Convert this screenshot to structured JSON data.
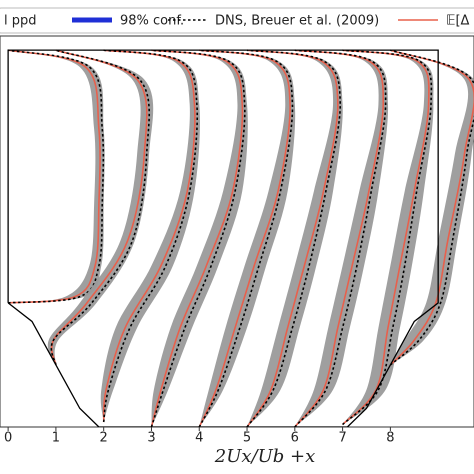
{
  "chart_data": {
    "type": "line",
    "xlabel": "2Ux/Ub +x",
    "xlim": [
      -0.17,
      9.75
    ],
    "ylim": [
      0,
      3.15
    ],
    "xticks": [
      0,
      1,
      2,
      3,
      4,
      5,
      6,
      7,
      8
    ],
    "legend": [
      {
        "name": "l ppd",
        "color": "#9a9a9a"
      },
      {
        "name": "98% conf.",
        "color": "#1f2fd6"
      },
      {
        "name": "DNS, Breuer et al. (2009)",
        "color": "#000000"
      },
      {
        "name": "𝔼[Δ",
        "color": "#e8604c"
      }
    ],
    "geometry": {
      "color": "#000000",
      "x": [
        0,
        0.5,
        1,
        1.5,
        1.9,
        7.1,
        7.5,
        8,
        8.5,
        9,
        9,
        0,
        0
      ],
      "y": [
        1,
        0.85,
        0.5,
        0.15,
        0,
        0,
        0.15,
        0.5,
        0.85,
        1,
        3.036,
        3.036,
        1
      ]
    },
    "profiles": [
      {
        "y": [
          1,
          1.05,
          1.3,
          1.8,
          2.4,
          2.9,
          3.036
        ],
        "dns": [
          0,
          1.5,
          1.9,
          1.97,
          1.97,
          1.7,
          0
        ],
        "mean": [
          0,
          1.4,
          1.82,
          1.9,
          1.9,
          1.62,
          0
        ],
        "lo": [
          0,
          1.2,
          1.7,
          1.8,
          1.8,
          1.5,
          0
        ],
        "hi": [
          0,
          1.6,
          1.95,
          2.0,
          2.0,
          1.75,
          0
        ]
      },
      {
        "y": [
          0.5,
          0.7,
          1.0,
          1.5,
          2.2,
          2.8,
          3.036
        ],
        "dns": [
          1,
          0.95,
          1.75,
          2.6,
          2.9,
          2.75,
          1
        ],
        "mean": [
          1,
          0.95,
          1.65,
          2.5,
          2.85,
          2.7,
          1
        ],
        "lo": [
          1,
          0.85,
          1.5,
          2.35,
          2.7,
          2.6,
          1
        ],
        "hi": [
          1,
          1.05,
          1.85,
          2.65,
          2.95,
          2.85,
          1
        ]
      },
      {
        "y": [
          0.04,
          0.3,
          0.8,
          1.3,
          1.9,
          2.6,
          2.95,
          3.036
        ],
        "dns": [
          2,
          2.1,
          2.55,
          3.3,
          3.8,
          3.95,
          3.6,
          2
        ],
        "mean": [
          2,
          2.05,
          2.45,
          3.2,
          3.75,
          3.9,
          3.55,
          2
        ],
        "lo": [
          2,
          1.95,
          2.25,
          3.0,
          3.6,
          3.8,
          3.45,
          2
        ],
        "hi": [
          2,
          2.2,
          2.7,
          3.45,
          3.9,
          4.0,
          3.65,
          2
        ]
      },
      {
        "y": [
          0,
          0.3,
          0.8,
          1.3,
          1.9,
          2.6,
          2.95,
          3.036
        ],
        "dns": [
          3,
          3.25,
          3.7,
          4.25,
          4.75,
          4.95,
          4.6,
          3
        ],
        "mean": [
          3,
          3.2,
          3.6,
          4.15,
          4.7,
          4.9,
          4.55,
          3
        ],
        "lo": [
          3,
          3.05,
          3.4,
          3.95,
          4.5,
          4.8,
          4.45,
          3
        ],
        "hi": [
          3,
          3.35,
          3.85,
          4.4,
          4.9,
          5.0,
          4.65,
          3
        ]
      },
      {
        "y": [
          0,
          0.3,
          0.8,
          1.3,
          1.9,
          2.6,
          2.95,
          3.036
        ],
        "dns": [
          4,
          4.4,
          4.85,
          5.25,
          5.7,
          5.95,
          5.6,
          4
        ],
        "mean": [
          4,
          4.35,
          4.75,
          5.15,
          5.65,
          5.9,
          5.55,
          4
        ],
        "lo": [
          4,
          4.2,
          4.55,
          4.95,
          5.45,
          5.8,
          5.45,
          4
        ],
        "hi": [
          4,
          4.5,
          5.0,
          5.4,
          5.85,
          6.0,
          5.65,
          4
        ]
      },
      {
        "y": [
          0,
          0.3,
          0.8,
          1.3,
          1.9,
          2.6,
          2.95,
          3.036
        ],
        "dns": [
          5,
          5.55,
          5.95,
          6.3,
          6.65,
          6.95,
          6.6,
          5
        ],
        "mean": [
          5,
          5.5,
          5.85,
          6.2,
          6.6,
          6.9,
          6.55,
          5
        ],
        "lo": [
          5,
          5.3,
          5.65,
          6.0,
          6.4,
          6.8,
          6.45,
          5
        ],
        "hi": [
          5,
          5.7,
          6.1,
          6.45,
          6.8,
          7.0,
          6.65,
          5
        ]
      },
      {
        "y": [
          0,
          0.3,
          0.8,
          1.3,
          1.9,
          2.6,
          2.95,
          3.036
        ],
        "dns": [
          6,
          6.65,
          7.0,
          7.3,
          7.6,
          7.9,
          7.6,
          6
        ],
        "mean": [
          6,
          6.6,
          6.9,
          7.2,
          7.55,
          7.85,
          7.55,
          6
        ],
        "lo": [
          6,
          6.4,
          6.7,
          7.0,
          7.35,
          7.75,
          7.45,
          6
        ],
        "hi": [
          6,
          6.8,
          7.15,
          7.45,
          7.75,
          7.95,
          7.65,
          6
        ]
      },
      {
        "y": [
          0.02,
          0.3,
          0.8,
          1.3,
          1.9,
          2.6,
          2.95,
          3.036
        ],
        "dns": [
          7,
          7.75,
          8.05,
          8.3,
          8.55,
          8.85,
          8.6,
          7
        ],
        "mean": [
          7,
          7.7,
          7.95,
          8.2,
          8.5,
          8.8,
          8.55,
          7
        ],
        "lo": [
          7,
          7.5,
          7.75,
          8.0,
          8.3,
          8.7,
          8.45,
          7
        ],
        "hi": [
          7,
          7.9,
          8.2,
          8.45,
          8.7,
          8.9,
          8.65,
          7
        ]
      },
      {
        "y": [
          0.5,
          0.7,
          1.0,
          1.5,
          2.2,
          2.8,
          3.036
        ],
        "dns": [
          8,
          8.6,
          9.05,
          9.3,
          9.6,
          9.7,
          8
        ],
        "mean": [
          8,
          8.5,
          8.95,
          9.2,
          9.55,
          9.65,
          8
        ],
        "lo": [
          8,
          8.3,
          8.75,
          9.0,
          9.35,
          9.55,
          8
        ],
        "hi": [
          8,
          8.7,
          9.15,
          9.4,
          9.7,
          9.75,
          8
        ]
      }
    ]
  }
}
